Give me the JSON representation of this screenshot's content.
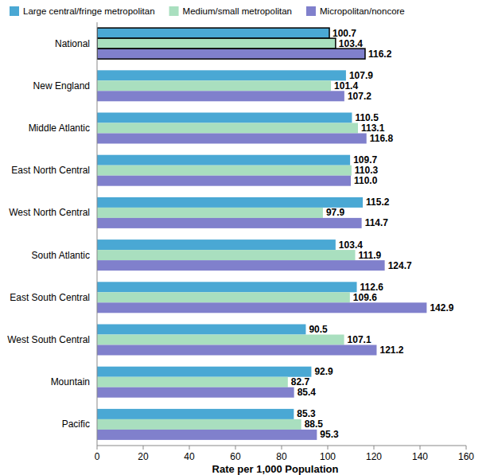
{
  "chart_data": {
    "type": "bar",
    "orientation": "horizontal",
    "x_label": "Rate per 1,000 Population",
    "categories": [
      "National",
      "New England",
      "Middle Atlantic",
      "East North Central",
      "West North Central",
      "South Atlantic",
      "East South Central",
      "West South Central",
      "Mountain",
      "Pacific"
    ],
    "series": [
      {
        "name": "Large central/fringe metropolitan",
        "color": "#4aa8d4",
        "values": [
          100.7,
          107.9,
          110.5,
          109.7,
          115.2,
          103.4,
          112.6,
          90.5,
          92.9,
          85.3
        ]
      },
      {
        "name": "Medium/small metropolitan",
        "color": "#a9dfbf",
        "values": [
          103.4,
          101.4,
          113.1,
          110.3,
          97.9,
          111.9,
          109.6,
          107.1,
          82.7,
          88.5
        ]
      },
      {
        "name": "Micropolitan/noncore",
        "color": "#8080cc",
        "values": [
          116.2,
          107.2,
          116.8,
          110.0,
          114.7,
          124.7,
          142.9,
          121.2,
          85.4,
          95.3
        ],
        "value_labels": [
          "116.2",
          "107.2",
          "116.8",
          "110.0",
          "114.7",
          "124.7",
          "142.9",
          "121.2",
          "85.4",
          "95.3"
        ]
      }
    ],
    "xlim": [
      0,
      160
    ],
    "xticks": [
      0,
      20,
      40,
      60,
      80,
      100,
      120,
      140,
      160
    ],
    "grid": false,
    "legend": "top",
    "data_labels": true
  }
}
